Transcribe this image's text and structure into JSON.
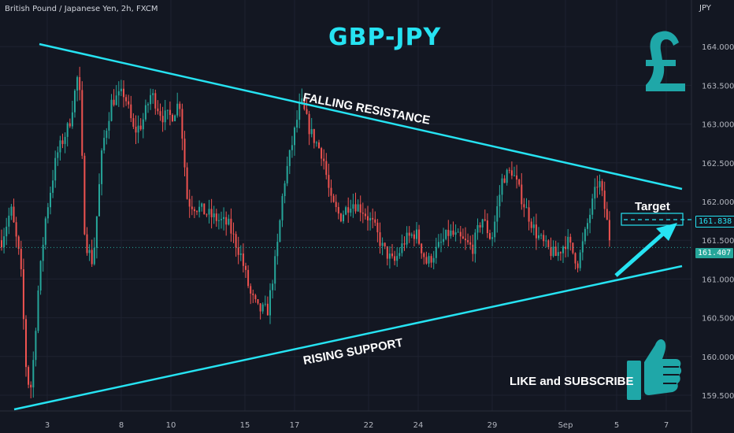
{
  "header": {
    "symbol": "British Pound / Japanese Yen, 2h, FXCM",
    "currency": "JPY",
    "title": "GBP-JPY"
  },
  "annotations": {
    "falling_resistance": "FALLING RESISTANCE",
    "rising_support": "RISING SUPPORT",
    "target": "Target",
    "cta": "LIKE and SUBSCRIBE"
  },
  "price_tags": {
    "target": "161.838",
    "last": "161.407"
  },
  "colors": {
    "background": "#131722",
    "up": "#26a69a",
    "down": "#ef5350",
    "trendline": "#26e3f2",
    "icon": "#1fa7a8"
  },
  "icons": [
    "pound-sign-icon",
    "thumbs-up-icon",
    "target-arrow-icon"
  ],
  "chart_data": {
    "type": "candlestick",
    "x_ticks": [
      "3",
      "8",
      "10",
      "15",
      "17",
      "22",
      "24",
      "29",
      "Sep",
      "5",
      "7"
    ],
    "y_ticks": [
      "159.500",
      "160.000",
      "160.500",
      "161.000",
      "161.500",
      "162.000",
      "162.500",
      "163.000",
      "163.500",
      "164.000"
    ],
    "ylim": [
      159.4,
      164.6
    ],
    "grid": true,
    "key_points": [
      {
        "label": "start",
        "close": 161.5
      },
      {
        "label": "low",
        "close": 159.5
      },
      {
        "label": "high",
        "close": 163.9
      },
      {
        "label": "last",
        "close": 161.407
      }
    ],
    "resistance": {
      "from": 164.15,
      "to": 162.2
    },
    "support": {
      "from": 159.45,
      "to": 161.2
    },
    "target_price": 161.838,
    "last_price": 161.407
  }
}
